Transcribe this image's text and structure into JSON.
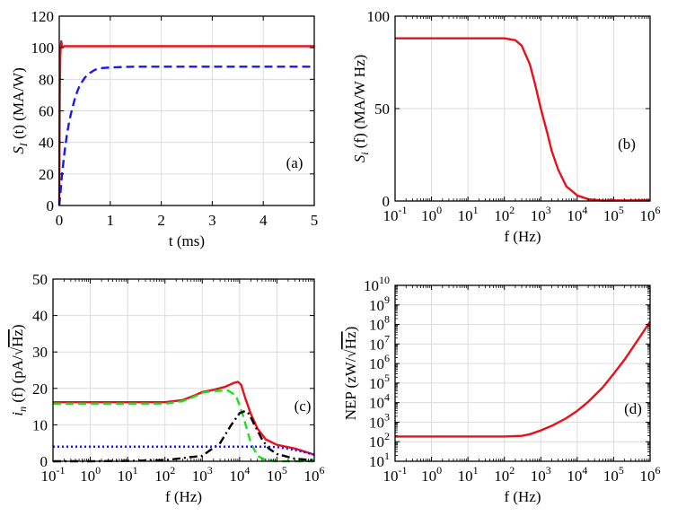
{
  "chart_data": [
    {
      "type": "line",
      "panel_label": "(a)",
      "xlabel": "t (ms)",
      "ylabel": "S_I(t) (MA/W)",
      "ylabel_main": "S",
      "ylabel_sub": "I",
      "ylabel_rest": "(t) (MA/W)",
      "xlim": [
        0,
        5
      ],
      "ylim": [
        0,
        120
      ],
      "xticks": [
        0,
        1,
        2,
        3,
        4,
        5
      ],
      "yticks": [
        0,
        20,
        40,
        60,
        80,
        100,
        120
      ],
      "xscale": "linear",
      "yscale": "linear",
      "grid": true,
      "series": [
        {
          "color": "#e8101a",
          "dash": "solid",
          "points": [
            [
              0,
              0
            ],
            [
              0.01,
              70
            ],
            [
              0.02,
              95
            ],
            [
              0.03,
              101
            ],
            [
              0.04,
              104
            ],
            [
              0.05,
              102
            ],
            [
              0.06,
              101
            ],
            [
              0.08,
              100.5
            ],
            [
              0.1,
              101
            ],
            [
              0.5,
              101
            ],
            [
              1,
              101
            ],
            [
              2,
              101
            ],
            [
              3,
              101
            ],
            [
              4,
              101
            ],
            [
              5,
              101
            ]
          ]
        },
        {
          "color": "#1a1aee",
          "dash": "dashed",
          "points": [
            [
              0,
              0
            ],
            [
              0.05,
              18
            ],
            [
              0.1,
              33
            ],
            [
              0.15,
              45
            ],
            [
              0.2,
              54
            ],
            [
              0.25,
              61
            ],
            [
              0.3,
              67
            ],
            [
              0.35,
              72
            ],
            [
              0.4,
              76
            ],
            [
              0.5,
              81
            ],
            [
              0.6,
              84
            ],
            [
              0.7,
              86
            ],
            [
              0.8,
              87
            ],
            [
              1,
              87.5
            ],
            [
              1.5,
              88
            ],
            [
              2,
              88
            ],
            [
              3,
              88
            ],
            [
              4,
              88
            ],
            [
              5,
              88
            ]
          ]
        }
      ]
    },
    {
      "type": "line",
      "panel_label": "(b)",
      "xlabel": "f (Hz)",
      "ylabel": "S_i(f) (MA/W Hz)",
      "ylabel_main": "S",
      "ylabel_sub": "i",
      "ylabel_rest": "(f) (MA/W Hz)",
      "xlim": [
        0.1,
        1000000
      ],
      "ylim": [
        0,
        100
      ],
      "xticks": [
        0.1,
        1,
        10,
        100,
        1000,
        10000,
        100000,
        1000000
      ],
      "xtick_exponents": [
        "-1",
        "0",
        "1",
        "2",
        "3",
        "4",
        "5",
        "6"
      ],
      "yticks": [
        0,
        50,
        100
      ],
      "xscale": "log",
      "yscale": "linear",
      "grid": true,
      "series": [
        {
          "color": "#e8101a",
          "dash": "solid",
          "points": [
            [
              0.1,
              88
            ],
            [
              1,
              88
            ],
            [
              10,
              88
            ],
            [
              100,
              88
            ],
            [
              200,
              87
            ],
            [
              300,
              84
            ],
            [
              500,
              74
            ],
            [
              700,
              63
            ],
            [
              1000,
              50
            ],
            [
              1500,
              37
            ],
            [
              2000,
              27
            ],
            [
              3000,
              17
            ],
            [
              5000,
              8
            ],
            [
              10000,
              3
            ],
            [
              20000,
              1
            ],
            [
              50000,
              0.2
            ],
            [
              100000,
              0.3
            ],
            [
              1000000,
              0.3
            ]
          ]
        }
      ]
    },
    {
      "type": "line",
      "panel_label": "(c)",
      "xlabel": "f (Hz)",
      "ylabel": "i_n(f) (pA/√Hz)",
      "ylabel_main": "i",
      "ylabel_sub": "n",
      "ylabel_rest": "(f) (pA/",
      "ylabel_sqrt": "Hz",
      "ylabel_close": ")",
      "xlim": [
        0.1,
        1000000
      ],
      "ylim": [
        0,
        50
      ],
      "xticks": [
        0.1,
        1,
        10,
        100,
        1000,
        10000,
        100000,
        1000000
      ],
      "xtick_exponents": [
        "-1",
        "0",
        "1",
        "2",
        "3",
        "4",
        "5",
        "6"
      ],
      "yticks": [
        0,
        10,
        20,
        30,
        40,
        50
      ],
      "xscale": "log",
      "yscale": "linear",
      "grid": true,
      "series": [
        {
          "color": "#e8101a",
          "dash": "solid",
          "points": [
            [
              0.1,
              16.2
            ],
            [
              1,
              16.2
            ],
            [
              10,
              16.2
            ],
            [
              100,
              16.2
            ],
            [
              300,
              16.8
            ],
            [
              600,
              18
            ],
            [
              1000,
              19
            ],
            [
              2000,
              19.6
            ],
            [
              4000,
              20.4
            ],
            [
              7000,
              21.5
            ],
            [
              9000,
              21.8
            ],
            [
              11000,
              21
            ],
            [
              14000,
              17.5
            ],
            [
              20000,
              13
            ],
            [
              30000,
              9
            ],
            [
              50000,
              6
            ],
            [
              100000,
              4.5
            ],
            [
              300000,
              3.5
            ],
            [
              1000000,
              1.8
            ]
          ]
        },
        {
          "color": "#22dd22",
          "dash": "dashed",
          "points": [
            [
              0.1,
              15.8
            ],
            [
              1,
              15.8
            ],
            [
              10,
              15.8
            ],
            [
              100,
              15.8
            ],
            [
              300,
              16.5
            ],
            [
              700,
              18
            ],
            [
              1000,
              18.8
            ],
            [
              2000,
              19.3
            ],
            [
              5000,
              19.4
            ],
            [
              8000,
              18
            ],
            [
              12000,
              13
            ],
            [
              20000,
              5
            ],
            [
              30000,
              1.5
            ],
            [
              50000,
              0.3
            ],
            [
              100000,
              0
            ],
            [
              1000000,
              0
            ]
          ]
        },
        {
          "color": "#000000",
          "dash": "dashdot",
          "points": [
            [
              0.1,
              0
            ],
            [
              1,
              0
            ],
            [
              10,
              0.1
            ],
            [
              100,
              0.3
            ],
            [
              1000,
              1.5
            ],
            [
              3000,
              5
            ],
            [
              6000,
              10
            ],
            [
              10000,
              13.2
            ],
            [
              14000,
              13.8
            ],
            [
              18000,
              13
            ],
            [
              25000,
              10
            ],
            [
              40000,
              6
            ],
            [
              60000,
              3.5
            ],
            [
              100000,
              2
            ],
            [
              300000,
              0.7
            ],
            [
              1000000,
              0.3
            ]
          ]
        },
        {
          "color": "#1a1aee",
          "dash": "dotted",
          "points": [
            [
              0.1,
              4
            ],
            [
              1,
              4
            ],
            [
              10,
              4
            ],
            [
              100,
              4
            ],
            [
              1000,
              4
            ],
            [
              10000,
              4
            ],
            [
              50000,
              4
            ],
            [
              100000,
              3.9
            ],
            [
              200000,
              3.4
            ],
            [
              500000,
              2.6
            ],
            [
              1000000,
              1.8
            ]
          ]
        }
      ]
    },
    {
      "type": "line",
      "panel_label": "(d)",
      "xlabel": "f (Hz)",
      "ylabel": "NEP (zW/√Hz)",
      "ylabel_main": "NEP",
      "ylabel_rest": "(zW/",
      "ylabel_sqrt": "Hz",
      "ylabel_close": ")",
      "xlim": [
        0.1,
        1000000
      ],
      "ylim": [
        10,
        10000000000
      ],
      "xticks": [
        0.1,
        1,
        10,
        100,
        1000,
        10000,
        100000,
        1000000
      ],
      "xtick_exponents": [
        "-1",
        "0",
        "1",
        "2",
        "3",
        "4",
        "5",
        "6"
      ],
      "yticks": [
        10,
        100,
        1000,
        10000,
        100000,
        1000000,
        10000000,
        100000000,
        1000000000,
        10000000000
      ],
      "ytick_exponents": [
        "1",
        "2",
        "3",
        "4",
        "5",
        "6",
        "7",
        "8",
        "9",
        "10"
      ],
      "xscale": "log",
      "yscale": "log",
      "grid": true,
      "series": [
        {
          "color": "#e8101a",
          "dash": "solid",
          "points": [
            [
              0.1,
              185
            ],
            [
              1,
              185
            ],
            [
              10,
              185
            ],
            [
              100,
              185
            ],
            [
              300,
              200
            ],
            [
              500,
              240
            ],
            [
              1000,
              380
            ],
            [
              2000,
              650
            ],
            [
              5000,
              1600
            ],
            [
              10000,
              3800
            ],
            [
              20000,
              11000
            ],
            [
              50000,
              60000
            ],
            [
              100000,
              300000
            ],
            [
              200000,
              1600000
            ],
            [
              500000,
              20000000
            ],
            [
              1000000,
              140000000
            ]
          ]
        }
      ]
    }
  ]
}
